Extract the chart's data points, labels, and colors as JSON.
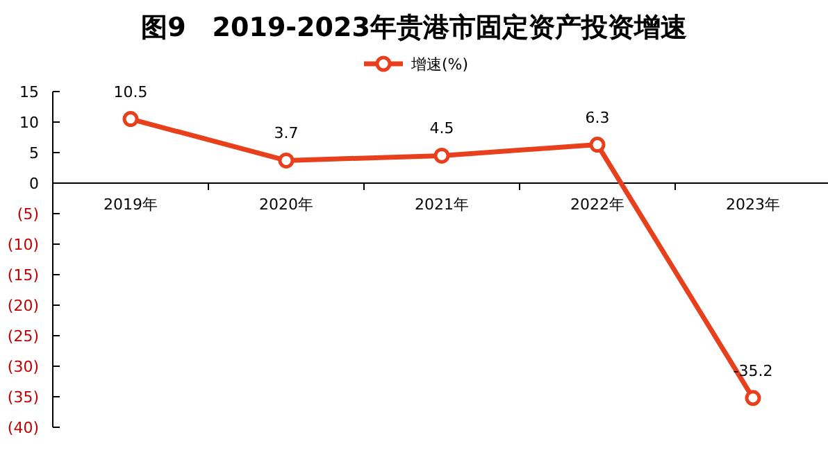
{
  "chart_data": {
    "type": "line",
    "title": "图9　2019-2023年贵港市固定资产投资增速",
    "categories": [
      "2019年",
      "2020年",
      "2021年",
      "2022年",
      "2023年"
    ],
    "series": [
      {
        "name": "增速(%)",
        "color": "#e8401c",
        "values": [
          10.5,
          3.7,
          4.5,
          6.3,
          -35.2
        ]
      }
    ],
    "ylim": [
      -40,
      15
    ],
    "yticks": [
      15,
      10,
      5,
      0,
      {
        "value": -5,
        "label": "(5)"
      },
      {
        "value": -10,
        "label": "(10)"
      },
      {
        "value": -15,
        "label": "(15)"
      },
      {
        "value": -20,
        "label": "(20)"
      },
      {
        "value": -25,
        "label": "(25)"
      },
      {
        "value": -30,
        "label": "(30)"
      },
      {
        "value": -35,
        "label": "(35)"
      },
      {
        "value": -40,
        "label": "(40)"
      }
    ],
    "data_labels": true,
    "marker": "circle",
    "legend": "top",
    "grid": false
  }
}
